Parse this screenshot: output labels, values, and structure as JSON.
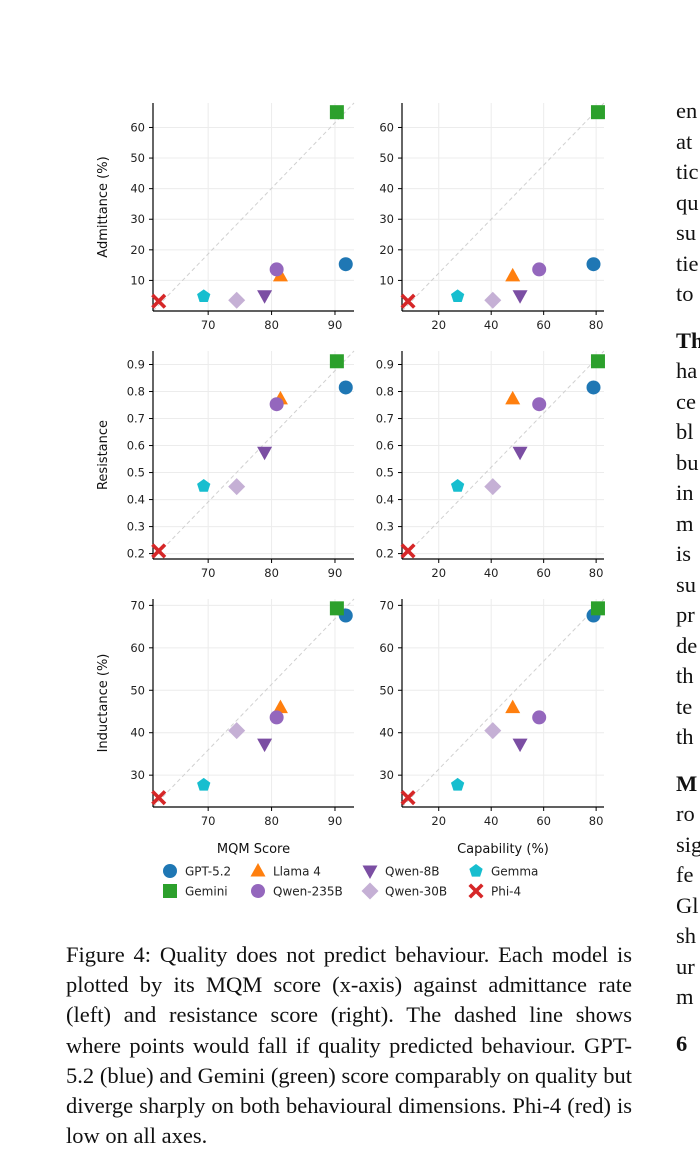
{
  "chart_data": {
    "type": "scatter",
    "legend": {
      "placement": "bottom",
      "entries": [
        {
          "name": "GPT-5.2",
          "color": "#1f77b4",
          "marker": "circle"
        },
        {
          "name": "Llama 4",
          "color": "#ff7f0e",
          "marker": "triangle-up"
        },
        {
          "name": "Qwen-8B",
          "color": "#7b4ea3",
          "marker": "triangle-down"
        },
        {
          "name": "Gemma",
          "color": "#17becf",
          "marker": "pentagon"
        },
        {
          "name": "Gemini",
          "color": "#2ca02c",
          "marker": "square"
        },
        {
          "name": "Qwen-235B",
          "color": "#9467bd",
          "marker": "circle"
        },
        {
          "name": "Qwen-30B",
          "color": "#c5b0d5",
          "marker": "diamond"
        },
        {
          "name": "Phi-4",
          "color": "#d62728",
          "marker": "x"
        }
      ]
    },
    "x_axes": {
      "mqm": {
        "label": "MQM Score",
        "ticks": [
          70,
          80,
          90
        ],
        "lim": [
          61.3,
          93
        ]
      },
      "capability": {
        "label": "Capability (%)",
        "ticks": [
          20,
          40,
          60,
          80
        ],
        "lim": [
          6,
          83
        ]
      }
    },
    "y_axes": {
      "admittance": {
        "label": "Admittance (%)",
        "ticks": [
          10,
          20,
          30,
          40,
          50,
          60
        ],
        "lim": [
          0,
          68
        ]
      },
      "resistance": {
        "label": "Resistance",
        "ticks": [
          0.2,
          0.3,
          0.4,
          0.5,
          0.6,
          0.7,
          0.8,
          0.9
        ],
        "lim": [
          0.18,
          0.95
        ]
      },
      "inductance": {
        "label": "Inductance (%)",
        "ticks": [
          30,
          40,
          50,
          60,
          70
        ],
        "lim": [
          22.5,
          71.5
        ]
      }
    },
    "grid": true,
    "diagonal": "dashed",
    "models": [
      {
        "name": "GPT-5.2",
        "mqm": 91.7,
        "capability": 79,
        "admittance": 15.3,
        "resistance": 0.815,
        "inductance": 67.6
      },
      {
        "name": "Gemini",
        "mqm": 90.3,
        "capability": 80.7,
        "admittance": 65,
        "resistance": 0.912,
        "inductance": 69.3
      },
      {
        "name": "Llama 4",
        "mqm": 81.4,
        "capability": 48.2,
        "admittance": 11.5,
        "resistance": 0.773,
        "inductance": 45.9
      },
      {
        "name": "Qwen-235B",
        "mqm": 80.8,
        "capability": 58.3,
        "admittance": 13.6,
        "resistance": 0.753,
        "inductance": 43.6
      },
      {
        "name": "Qwen-8B",
        "mqm": 78.9,
        "capability": 51,
        "admittance": 5,
        "resistance": 0.575,
        "inductance": 37.3
      },
      {
        "name": "Qwen-30B",
        "mqm": 74.5,
        "capability": 40.6,
        "admittance": 3.5,
        "resistance": 0.448,
        "inductance": 40.5
      },
      {
        "name": "Gemma",
        "mqm": 69.3,
        "capability": 27.2,
        "admittance": 4.8,
        "resistance": 0.45,
        "inductance": 27.7
      },
      {
        "name": "Phi-4",
        "mqm": 62.2,
        "capability": 8.3,
        "admittance": 3.2,
        "resistance": 0.21,
        "inductance": 24.7
      }
    ]
  },
  "caption": "Figure 4: Quality does not predict behaviour. Each model is plotted by its MQM score (x-axis) against admittance rate (left) and resistance score (right). The dashed line shows where points would fall if quality predicted behaviour. GPT-5.2 (blue) and Gemini (green) score comparably on quality but diverge sharply on both behavioural dimensions. Phi-4 (red) is low on all axes.",
  "side_text": [
    {
      "text": "en",
      "bold": false
    },
    {
      "text": "at",
      "bold": false
    },
    {
      "text": "tic",
      "bold": false
    },
    {
      "text": "qu",
      "bold": false
    },
    {
      "text": "su",
      "bold": false
    },
    {
      "text": "tie",
      "bold": false
    },
    {
      "text": "to",
      "bold": false
    },
    {
      "text": "",
      "gap": true
    },
    {
      "text": "Th",
      "bold": true
    },
    {
      "text": "ha",
      "bold": false
    },
    {
      "text": "ce",
      "bold": false
    },
    {
      "text": "bl",
      "bold": false
    },
    {
      "text": "bu",
      "bold": false
    },
    {
      "text": "in",
      "bold": false
    },
    {
      "text": "m",
      "bold": false
    },
    {
      "text": "is",
      "bold": false
    },
    {
      "text": "su",
      "bold": false
    },
    {
      "text": "pr",
      "bold": false
    },
    {
      "text": "de",
      "bold": false
    },
    {
      "text": "th",
      "bold": false
    },
    {
      "text": "te",
      "bold": false
    },
    {
      "text": "th",
      "bold": false
    },
    {
      "text": "",
      "gap": true
    },
    {
      "text": "M",
      "bold": true
    },
    {
      "text": "ro",
      "bold": false
    },
    {
      "text": "sig",
      "bold": false
    },
    {
      "text": "fe",
      "bold": false
    },
    {
      "text": "Gl",
      "bold": false
    },
    {
      "text": "sh",
      "bold": false
    },
    {
      "text": "ur",
      "bold": false
    },
    {
      "text": "m",
      "bold": false
    },
    {
      "text": "",
      "gap": true
    },
    {
      "text": "6",
      "bold": true
    }
  ]
}
